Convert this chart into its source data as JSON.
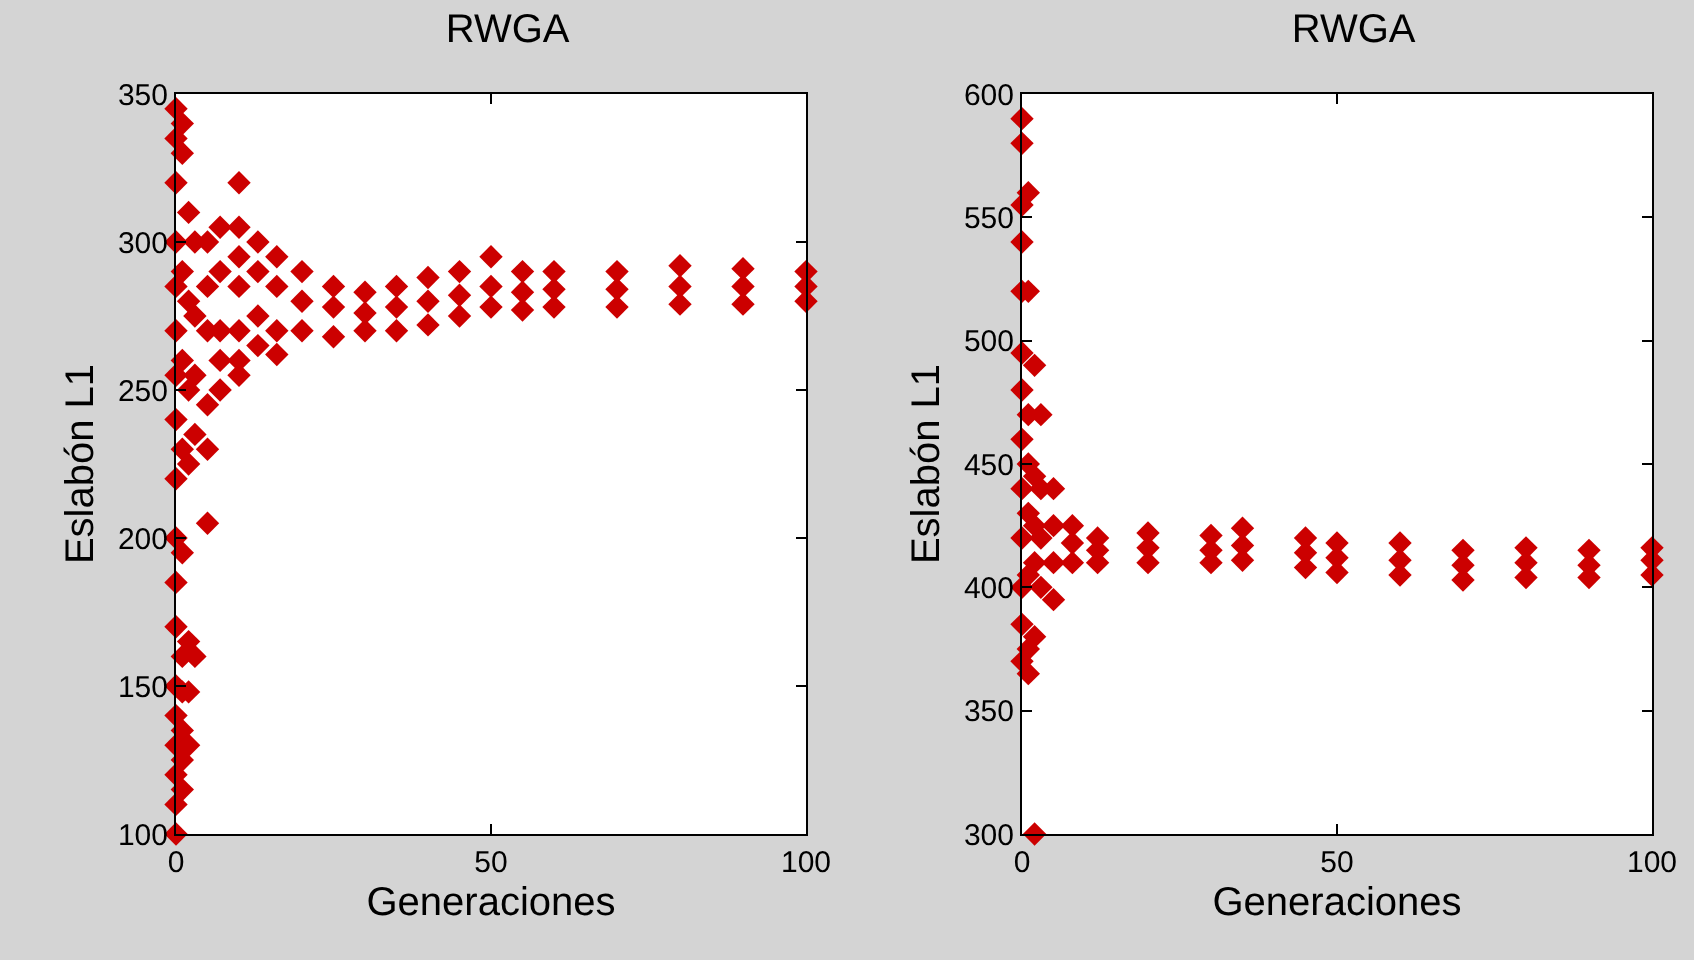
{
  "chart_data": [
    {
      "type": "scatter",
      "title": "RWGA",
      "xlabel": "Generaciones",
      "ylabel": "Eslabón L1",
      "xlim": [
        0,
        100
      ],
      "xticks": [
        0,
        50,
        100
      ],
      "ylim": [
        100,
        350
      ],
      "yticks": [
        100,
        150,
        200,
        250,
        300,
        350
      ],
      "grid": false,
      "marker": "diamond",
      "series": [
        {
          "color": "#cc0000",
          "x": [
            0,
            0,
            0,
            0,
            0,
            0,
            0,
            0,
            0,
            0,
            0,
            0,
            0,
            0,
            0,
            0,
            0,
            0,
            1,
            1,
            1,
            1,
            1,
            1,
            1,
            1,
            1,
            1,
            1,
            2,
            2,
            2,
            2,
            2,
            2,
            2,
            3,
            3,
            3,
            3,
            3,
            5,
            5,
            5,
            5,
            5,
            5,
            7,
            7,
            7,
            7,
            7,
            10,
            10,
            10,
            10,
            10,
            10,
            10,
            13,
            13,
            13,
            13,
            16,
            16,
            16,
            16,
            20,
            20,
            20,
            25,
            25,
            25,
            30,
            30,
            30,
            35,
            35,
            35,
            40,
            40,
            40,
            45,
            45,
            45,
            50,
            50,
            50,
            55,
            55,
            55,
            60,
            60,
            60,
            70,
            70,
            70,
            80,
            80,
            80,
            90,
            90,
            90,
            100,
            100,
            100
          ],
          "values": [
            345,
            335,
            320,
            300,
            285,
            270,
            255,
            240,
            220,
            200,
            185,
            170,
            150,
            140,
            130,
            120,
            110,
            100,
            340,
            330,
            290,
            260,
            230,
            195,
            160,
            148,
            135,
            125,
            115,
            310,
            280,
            250,
            225,
            165,
            148,
            130,
            300,
            275,
            255,
            235,
            160,
            300,
            285,
            270,
            245,
            230,
            205,
            305,
            290,
            270,
            260,
            250,
            320,
            305,
            295,
            285,
            270,
            260,
            255,
            300,
            290,
            275,
            265,
            295,
            285,
            270,
            262,
            290,
            280,
            270,
            285,
            278,
            268,
            283,
            276,
            270,
            285,
            278,
            270,
            288,
            280,
            272,
            290,
            282,
            275,
            295,
            285,
            278,
            290,
            283,
            277,
            290,
            284,
            278,
            290,
            284,
            278,
            292,
            285,
            279,
            291,
            285,
            279,
            290,
            285,
            280
          ]
        }
      ]
    },
    {
      "type": "scatter",
      "title": "RWGA",
      "xlabel": "Generaciones",
      "ylabel": "Eslabón L1",
      "xlim": [
        0,
        100
      ],
      "xticks": [
        0,
        50,
        100
      ],
      "ylim": [
        300,
        600
      ],
      "yticks": [
        300,
        350,
        400,
        450,
        500,
        550,
        600
      ],
      "grid": false,
      "marker": "diamond",
      "series": [
        {
          "color": "#cc0000",
          "x": [
            0,
            0,
            0,
            0,
            0,
            0,
            0,
            0,
            0,
            0,
            0,
            0,
            0,
            1,
            1,
            1,
            1,
            1,
            1,
            1,
            1,
            2,
            2,
            2,
            2,
            2,
            2,
            3,
            3,
            3,
            3,
            5,
            5,
            5,
            5,
            8,
            8,
            8,
            12,
            12,
            12,
            20,
            20,
            20,
            30,
            30,
            30,
            35,
            35,
            35,
            45,
            45,
            45,
            50,
            50,
            50,
            60,
            60,
            60,
            70,
            70,
            70,
            80,
            80,
            80,
            90,
            90,
            90,
            100,
            100,
            100
          ],
          "values": [
            590,
            580,
            555,
            540,
            520,
            495,
            480,
            460,
            440,
            420,
            400,
            385,
            370,
            560,
            520,
            470,
            450,
            430,
            405,
            375,
            365,
            300,
            490,
            445,
            425,
            410,
            380,
            470,
            440,
            420,
            400,
            440,
            425,
            410,
            395,
            425,
            418,
            410,
            420,
            415,
            410,
            422,
            416,
            410,
            421,
            415,
            410,
            424,
            417,
            411,
            420,
            414,
            408,
            418,
            412,
            406,
            418,
            411,
            405,
            415,
            409,
            403,
            416,
            410,
            404,
            415,
            409,
            404,
            416,
            411,
            405
          ]
        }
      ]
    }
  ]
}
